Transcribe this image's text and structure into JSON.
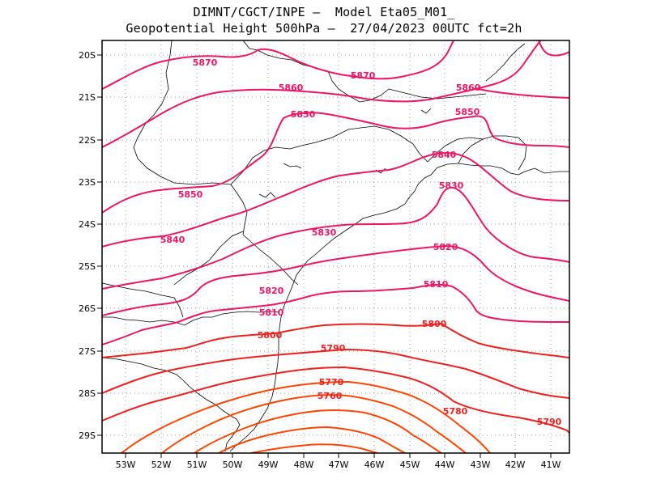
{
  "title": {
    "line1": "DIMNT/CGCT/INPE –  Model Eta05_M01_",
    "line2": "Geopotential Height 500hPa –  27/04/2023 00UTC fct=2h"
  },
  "colors": {
    "coast": "#000000",
    "grid": "#9a9a9a",
    "pink": "#ee1466",
    "red": "#ee2020",
    "orange": "#ff4400"
  },
  "axes": {
    "lon_labels": [
      "53W",
      "52W",
      "51W",
      "50W",
      "49W",
      "48W",
      "47W",
      "46W",
      "45W",
      "44W",
      "43W",
      "42W",
      "41W"
    ],
    "lat_labels": [
      "20S",
      "21S",
      "22S",
      "23S",
      "24S",
      "25S",
      "26S",
      "27S",
      "28S",
      "29S"
    ]
  },
  "contour_labels": [
    {
      "text": "5870",
      "color": "pink",
      "name": "label-5870-west"
    },
    {
      "text": "5870",
      "color": "pink",
      "name": "label-5870-center"
    },
    {
      "text": "5860",
      "color": "pink",
      "name": "label-5860-center"
    },
    {
      "text": "5860",
      "color": "pink",
      "name": "label-5860-east"
    },
    {
      "text": "5850",
      "color": "pink",
      "name": "label-5850-center"
    },
    {
      "text": "5850",
      "color": "pink",
      "name": "label-5850-east"
    },
    {
      "text": "5850",
      "color": "pink",
      "name": "label-5850-west"
    },
    {
      "text": "5840",
      "color": "pink",
      "name": "label-5840-east"
    },
    {
      "text": "5840",
      "color": "pink",
      "name": "label-5840-west"
    },
    {
      "text": "5830",
      "color": "pink",
      "name": "label-5830-east"
    },
    {
      "text": "5830",
      "color": "pink",
      "name": "label-5830-center"
    },
    {
      "text": "5820",
      "color": "pink",
      "name": "label-5820-east"
    },
    {
      "text": "5820",
      "color": "pink",
      "name": "label-5820-west"
    },
    {
      "text": "5810",
      "color": "pink",
      "name": "label-5810-east"
    },
    {
      "text": "5810",
      "color": "pink",
      "name": "label-5810-west"
    },
    {
      "text": "5800",
      "color": "red",
      "name": "label-5800-east"
    },
    {
      "text": "5800",
      "color": "red",
      "name": "label-5800-west"
    },
    {
      "text": "5790",
      "color": "red",
      "name": "label-5790-center"
    },
    {
      "text": "5790",
      "color": "red",
      "name": "label-5790-east"
    },
    {
      "text": "5780",
      "color": "red",
      "name": "label-5780"
    },
    {
      "text": "5770",
      "color": "red",
      "name": "label-5770"
    },
    {
      "text": "5760",
      "color": "red",
      "name": "label-5760"
    }
  ]
}
